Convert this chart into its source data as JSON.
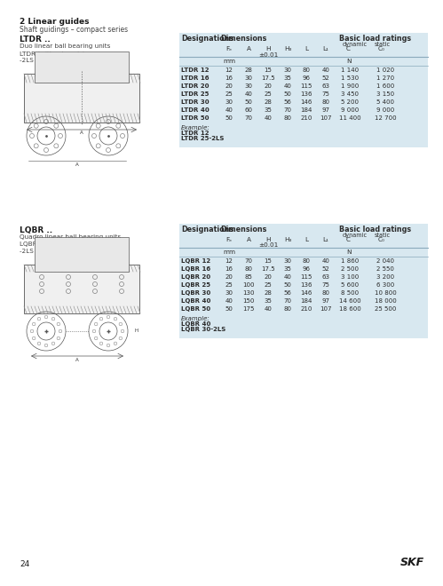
{
  "page_title": "2 Linear guides",
  "page_subtitle": "Shaft guidings – compact series",
  "page_number": "24",
  "skf_logo": "SKF",
  "bg_color": "#ffffff",
  "table_bg": "#d8e8f0",
  "section1": {
    "title": "LTDR ..",
    "desc_lines": [
      "Duo linear ball bearing units",
      "LTDR (without seals)",
      "-2LS with four seals"
    ],
    "example_label": "Example:",
    "example_lines": [
      "LTDR 12",
      "LTDR 25-2LS"
    ],
    "rows": [
      [
        "LTDR 12",
        "12",
        "28",
        "15",
        "30",
        "80",
        "40",
        "1 140",
        "1 020"
      ],
      [
        "LTDR 16",
        "16",
        "30",
        "17.5",
        "35",
        "96",
        "52",
        "1 530",
        "1 270"
      ],
      [
        "LTDR 20",
        "20",
        "30",
        "20",
        "40",
        "115",
        "63",
        "1 900",
        "1 600"
      ],
      [
        "LTDR 25",
        "25",
        "40",
        "25",
        "50",
        "136",
        "75",
        "3 450",
        "3 150"
      ],
      [
        "LTDR 30",
        "30",
        "50",
        "28",
        "56",
        "146",
        "80",
        "5 200",
        "5 400"
      ],
      [
        "LTDR 40",
        "40",
        "60",
        "35",
        "70",
        "184",
        "97",
        "9 000",
        "9 000"
      ],
      [
        "LTDR 50",
        "50",
        "70",
        "40",
        "80",
        "210",
        "107",
        "11 400",
        "12 700"
      ]
    ]
  },
  "section2": {
    "title": "LQBR ..",
    "desc_lines": [
      "Quadro linear ball bearing units",
      "LQBR (without seals)",
      "-2LS with four seals"
    ],
    "example_label": "Example:",
    "example_lines": [
      "LQBR 40",
      "LQBR 30-2LS"
    ],
    "rows": [
      [
        "LQBR 12",
        "12",
        "70",
        "15",
        "30",
        "80",
        "40",
        "1 860",
        "2 040"
      ],
      [
        "LQBR 16",
        "16",
        "80",
        "17.5",
        "35",
        "96",
        "52",
        "2 500",
        "2 550"
      ],
      [
        "LQBR 20",
        "20",
        "85",
        "20",
        "40",
        "115",
        "63",
        "3 100",
        "3 200"
      ],
      [
        "LQBR 25",
        "25",
        "100",
        "25",
        "50",
        "136",
        "75",
        "5 600",
        "6 300"
      ],
      [
        "LQBR 30",
        "30",
        "130",
        "28",
        "56",
        "146",
        "80",
        "8 500",
        "10 800"
      ],
      [
        "LQBR 40",
        "40",
        "150",
        "35",
        "70",
        "184",
        "97",
        "14 600",
        "18 000"
      ],
      [
        "LQBR 50",
        "50",
        "175",
        "40",
        "80",
        "210",
        "107",
        "18 600",
        "25 500"
      ]
    ]
  }
}
